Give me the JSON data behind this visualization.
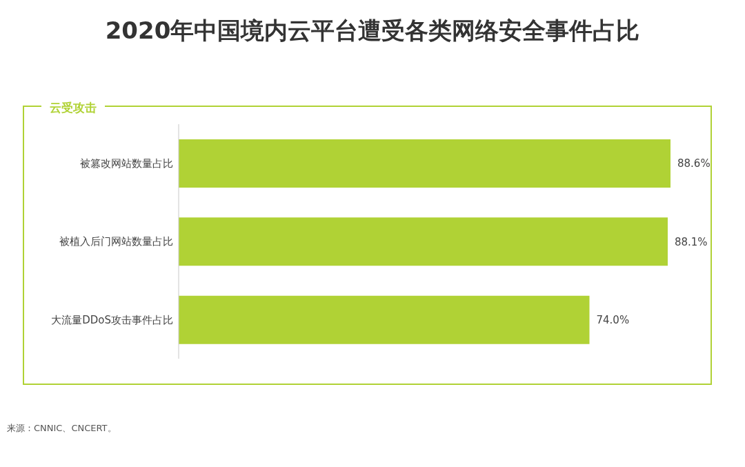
{
  "chart_data": {
    "type": "bar",
    "orientation": "horizontal",
    "title": "2020年中国境内云平台遭受各类网络安全事件占比",
    "subtitle": "云受攻击",
    "categories": [
      "被篡改网站数量占比",
      "被植入后门网站数量占比",
      "大流量DDoS攻击事件占比"
    ],
    "values": [
      88.6,
      88.1,
      74.0
    ],
    "color": "#b0d235",
    "value_labels": [
      "88.6%",
      "88.1%",
      "74.0%"
    ],
    "tick_labels": "y",
    "annotations": [
      "来源：CNNIC、CNCERT。"
    ]
  }
}
